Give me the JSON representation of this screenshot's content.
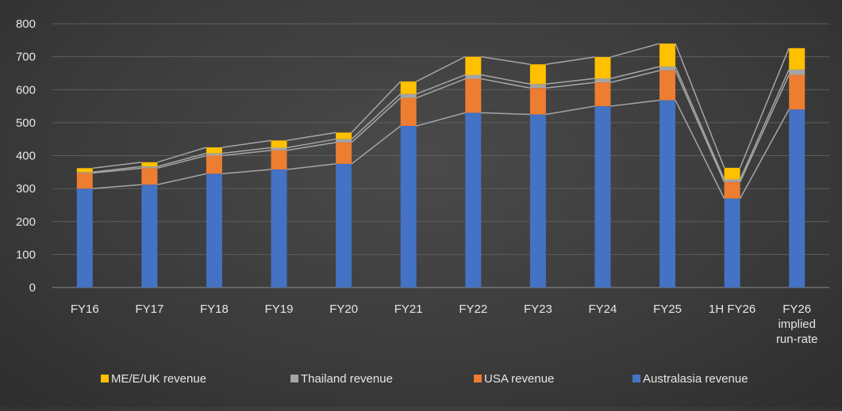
{
  "chart_data": {
    "type": "bar",
    "stacked": true,
    "categories": [
      [
        "FY16"
      ],
      [
        "FY17"
      ],
      [
        "FY18"
      ],
      [
        "FY19"
      ],
      [
        "FY20"
      ],
      [
        "FY21"
      ],
      [
        "FY22"
      ],
      [
        "FY23"
      ],
      [
        "FY24"
      ],
      [
        "FY25"
      ],
      [
        "1H FY26"
      ],
      [
        "FY26",
        "implied",
        "run-rate"
      ]
    ],
    "series": [
      {
        "name": "Australasia revenue",
        "color": "#4472C4",
        "values": [
          300,
          312,
          345,
          358,
          375,
          490,
          530,
          525,
          550,
          568,
          270,
          540
        ]
      },
      {
        "name": "USA revenue",
        "color": "#ED7D31",
        "values": [
          47,
          50,
          55,
          58,
          65,
          85,
          103,
          80,
          72,
          90,
          50,
          105
        ]
      },
      {
        "name": "Thailand revenue",
        "color": "#A5A5A5",
        "values": [
          3,
          5,
          7,
          8,
          10,
          12,
          12,
          12,
          12,
          12,
          8,
          16
        ]
      },
      {
        "name": "ME/E/UK revenue",
        "color": "#FFC000",
        "values": [
          12,
          13,
          18,
          22,
          20,
          38,
          55,
          60,
          65,
          70,
          35,
          65
        ]
      }
    ],
    "legend_order": [
      "ME/E/UK revenue",
      "Thailand revenue",
      "USA revenue",
      "Australasia revenue"
    ],
    "series_lines": true,
    "ylim": [
      0,
      800
    ],
    "yticks": [
      0,
      100,
      200,
      300,
      400,
      500,
      600,
      700,
      800
    ],
    "grid": true,
    "legend_position": "bottom",
    "title": "",
    "xlabel": "",
    "ylabel": ""
  }
}
